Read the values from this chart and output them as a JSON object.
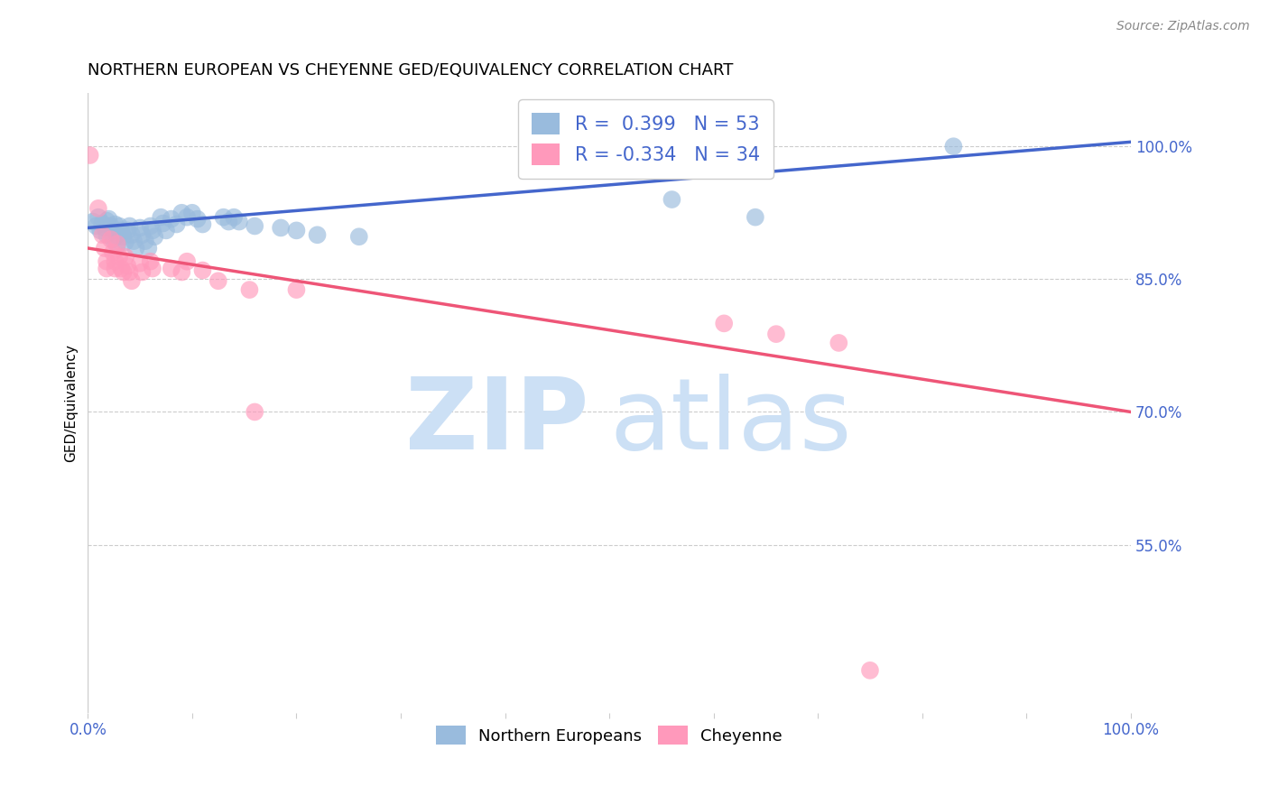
{
  "title": "NORTHERN EUROPEAN VS CHEYENNE GED/EQUIVALENCY CORRELATION CHART",
  "source": "Source: ZipAtlas.com",
  "ylabel": "GED/Equivalency",
  "ytick_labels": [
    "100.0%",
    "85.0%",
    "70.0%",
    "55.0%"
  ],
  "ytick_values": [
    1.0,
    0.85,
    0.7,
    0.55
  ],
  "xlim": [
    0.0,
    1.0
  ],
  "ylim": [
    0.36,
    1.06
  ],
  "blue_color": "#99BBDD",
  "pink_color": "#FF99BB",
  "blue_line_color": "#4466CC",
  "pink_line_color": "#EE5577",
  "tick_color": "#4466CC",
  "grid_color": "#cccccc",
  "r_blue": 0.399,
  "n_blue": 53,
  "r_pink": -0.334,
  "n_pink": 34,
  "blue_scatter": [
    [
      0.005,
      0.915
    ],
    [
      0.008,
      0.91
    ],
    [
      0.01,
      0.92
    ],
    [
      0.012,
      0.905
    ],
    [
      0.014,
      0.913
    ],
    [
      0.016,
      0.908
    ],
    [
      0.018,
      0.916
    ],
    [
      0.018,
      0.9
    ],
    [
      0.02,
      0.918
    ],
    [
      0.022,
      0.91
    ],
    [
      0.024,
      0.905
    ],
    [
      0.024,
      0.895
    ],
    [
      0.026,
      0.912
    ],
    [
      0.028,
      0.9
    ],
    [
      0.028,
      0.888
    ],
    [
      0.03,
      0.91
    ],
    [
      0.032,
      0.905
    ],
    [
      0.034,
      0.898
    ],
    [
      0.036,
      0.892
    ],
    [
      0.038,
      0.905
    ],
    [
      0.04,
      0.91
    ],
    [
      0.042,
      0.9
    ],
    [
      0.044,
      0.893
    ],
    [
      0.046,
      0.885
    ],
    [
      0.05,
      0.908
    ],
    [
      0.052,
      0.9
    ],
    [
      0.055,
      0.893
    ],
    [
      0.058,
      0.885
    ],
    [
      0.06,
      0.91
    ],
    [
      0.062,
      0.905
    ],
    [
      0.064,
      0.898
    ],
    [
      0.07,
      0.92
    ],
    [
      0.072,
      0.913
    ],
    [
      0.075,
      0.905
    ],
    [
      0.08,
      0.918
    ],
    [
      0.085,
      0.912
    ],
    [
      0.09,
      0.925
    ],
    [
      0.095,
      0.92
    ],
    [
      0.1,
      0.925
    ],
    [
      0.105,
      0.918
    ],
    [
      0.11,
      0.912
    ],
    [
      0.13,
      0.92
    ],
    [
      0.135,
      0.915
    ],
    [
      0.14,
      0.92
    ],
    [
      0.145,
      0.915
    ],
    [
      0.16,
      0.91
    ],
    [
      0.185,
      0.908
    ],
    [
      0.2,
      0.905
    ],
    [
      0.22,
      0.9
    ],
    [
      0.26,
      0.898
    ],
    [
      0.56,
      0.94
    ],
    [
      0.64,
      0.92
    ],
    [
      0.83,
      1.0
    ]
  ],
  "pink_scatter": [
    [
      0.002,
      0.99
    ],
    [
      0.01,
      0.93
    ],
    [
      0.014,
      0.9
    ],
    [
      0.016,
      0.885
    ],
    [
      0.018,
      0.87
    ],
    [
      0.018,
      0.862
    ],
    [
      0.022,
      0.895
    ],
    [
      0.024,
      0.88
    ],
    [
      0.026,
      0.87
    ],
    [
      0.026,
      0.862
    ],
    [
      0.028,
      0.89
    ],
    [
      0.03,
      0.875
    ],
    [
      0.032,
      0.862
    ],
    [
      0.034,
      0.858
    ],
    [
      0.036,
      0.875
    ],
    [
      0.038,
      0.865
    ],
    [
      0.04,
      0.858
    ],
    [
      0.042,
      0.848
    ],
    [
      0.05,
      0.868
    ],
    [
      0.052,
      0.858
    ],
    [
      0.06,
      0.87
    ],
    [
      0.062,
      0.862
    ],
    [
      0.08,
      0.862
    ],
    [
      0.09,
      0.858
    ],
    [
      0.095,
      0.87
    ],
    [
      0.11,
      0.86
    ],
    [
      0.125,
      0.848
    ],
    [
      0.155,
      0.838
    ],
    [
      0.16,
      0.7
    ],
    [
      0.2,
      0.838
    ],
    [
      0.61,
      0.8
    ],
    [
      0.66,
      0.788
    ],
    [
      0.72,
      0.778
    ],
    [
      0.75,
      0.408
    ]
  ],
  "blue_line_x": [
    0.0,
    1.0
  ],
  "blue_line_y": [
    0.908,
    1.005
  ],
  "pink_line_x": [
    0.0,
    1.0
  ],
  "pink_line_y": [
    0.885,
    0.7
  ]
}
